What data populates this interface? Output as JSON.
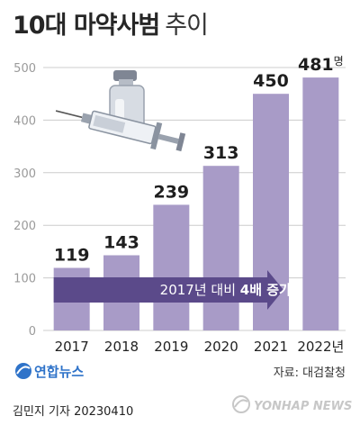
{
  "headline": {
    "title": "10대 마약사범",
    "subtitle": "추이"
  },
  "chart_data": {
    "type": "bar",
    "categories": [
      "2017",
      "2018",
      "2019",
      "2020",
      "2021",
      "2022"
    ],
    "x_unit_last": "년",
    "values": [
      119,
      143,
      239,
      313,
      450,
      481
    ],
    "value_unit_last": "명",
    "ylim": [
      0,
      500
    ],
    "yticks": [
      "0",
      "100",
      "200",
      "300",
      "400",
      "500"
    ],
    "grid": true,
    "annotation": {
      "prefix": "2017년 대비 ",
      "emphasis": "4배 증가"
    },
    "bar_color": "#a89bc7",
    "arrow_color": "#5b4a8a",
    "grid_color": "#cccccc"
  },
  "footer": {
    "logo": "연합뉴스",
    "source": "자료: 대검찰청",
    "credit": "김민지 기자  20230410",
    "watermark": "YONHAP NEWS"
  }
}
